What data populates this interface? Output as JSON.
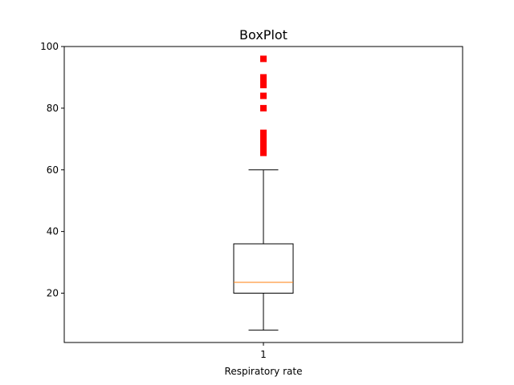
{
  "chart_data": {
    "type": "box",
    "title": "BoxPlot",
    "xlabel": "Respiratory rate",
    "ylabel": "",
    "x_tick_labels": [
      "1"
    ],
    "ylim": [
      4,
      100
    ],
    "y_ticks": [
      20,
      40,
      60,
      80,
      100
    ],
    "grid": false,
    "legend": "none",
    "boxes": [
      {
        "category": "1",
        "whisker_low": 8,
        "q1": 20,
        "median": 23.5,
        "q3": 36,
        "whisker_high": 60,
        "outliers": [
          65.5,
          66,
          67,
          68,
          69,
          70,
          71,
          72,
          80,
          84,
          87.5,
          88,
          89,
          90,
          96
        ]
      }
    ],
    "colors": {
      "box": "#000000",
      "median": "#ff7f0e",
      "outlier": "#ff0000"
    }
  }
}
